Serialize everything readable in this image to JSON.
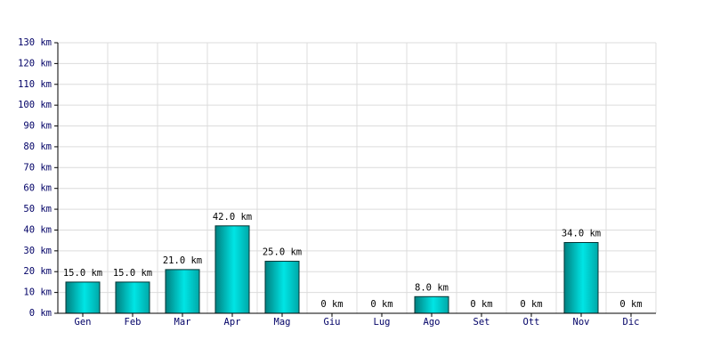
{
  "chart_data": {
    "type": "bar",
    "categories": [
      "Gen",
      "Feb",
      "Mar",
      "Apr",
      "Mag",
      "Giu",
      "Lug",
      "Ago",
      "Set",
      "Ott",
      "Nov",
      "Dic"
    ],
    "values": [
      15,
      15,
      21,
      42,
      25,
      0,
      0,
      8,
      0,
      0,
      34,
      0
    ],
    "value_labels": [
      "15.0 km",
      "15.0 km",
      "21.0 km",
      "42.0 km",
      "25.0 km",
      "0 km",
      "0 km",
      "8.0 km",
      "0 km",
      "0 km",
      "34.0 km",
      "0 km"
    ],
    "color": "#00e5e5",
    "ylim": [
      0,
      130
    ],
    "yticks": [
      {
        "value": 0,
        "label": "0 km"
      },
      {
        "value": 10,
        "label": "10 km"
      },
      {
        "value": 20,
        "label": "20 km"
      },
      {
        "value": 30,
        "label": "30 km"
      },
      {
        "value": 40,
        "label": "40 km"
      },
      {
        "value": 50,
        "label": "50 km"
      },
      {
        "value": 60,
        "label": "60 km"
      },
      {
        "value": 70,
        "label": "70 km"
      },
      {
        "value": 80,
        "label": "80 km"
      },
      {
        "value": 90,
        "label": "90 km"
      },
      {
        "value": 100,
        "label": "100 km"
      },
      {
        "value": 110,
        "label": "110 km"
      },
      {
        "value": 120,
        "label": "120 km"
      },
      {
        "value": 130,
        "label": "130 km"
      }
    ],
    "grid": true
  }
}
